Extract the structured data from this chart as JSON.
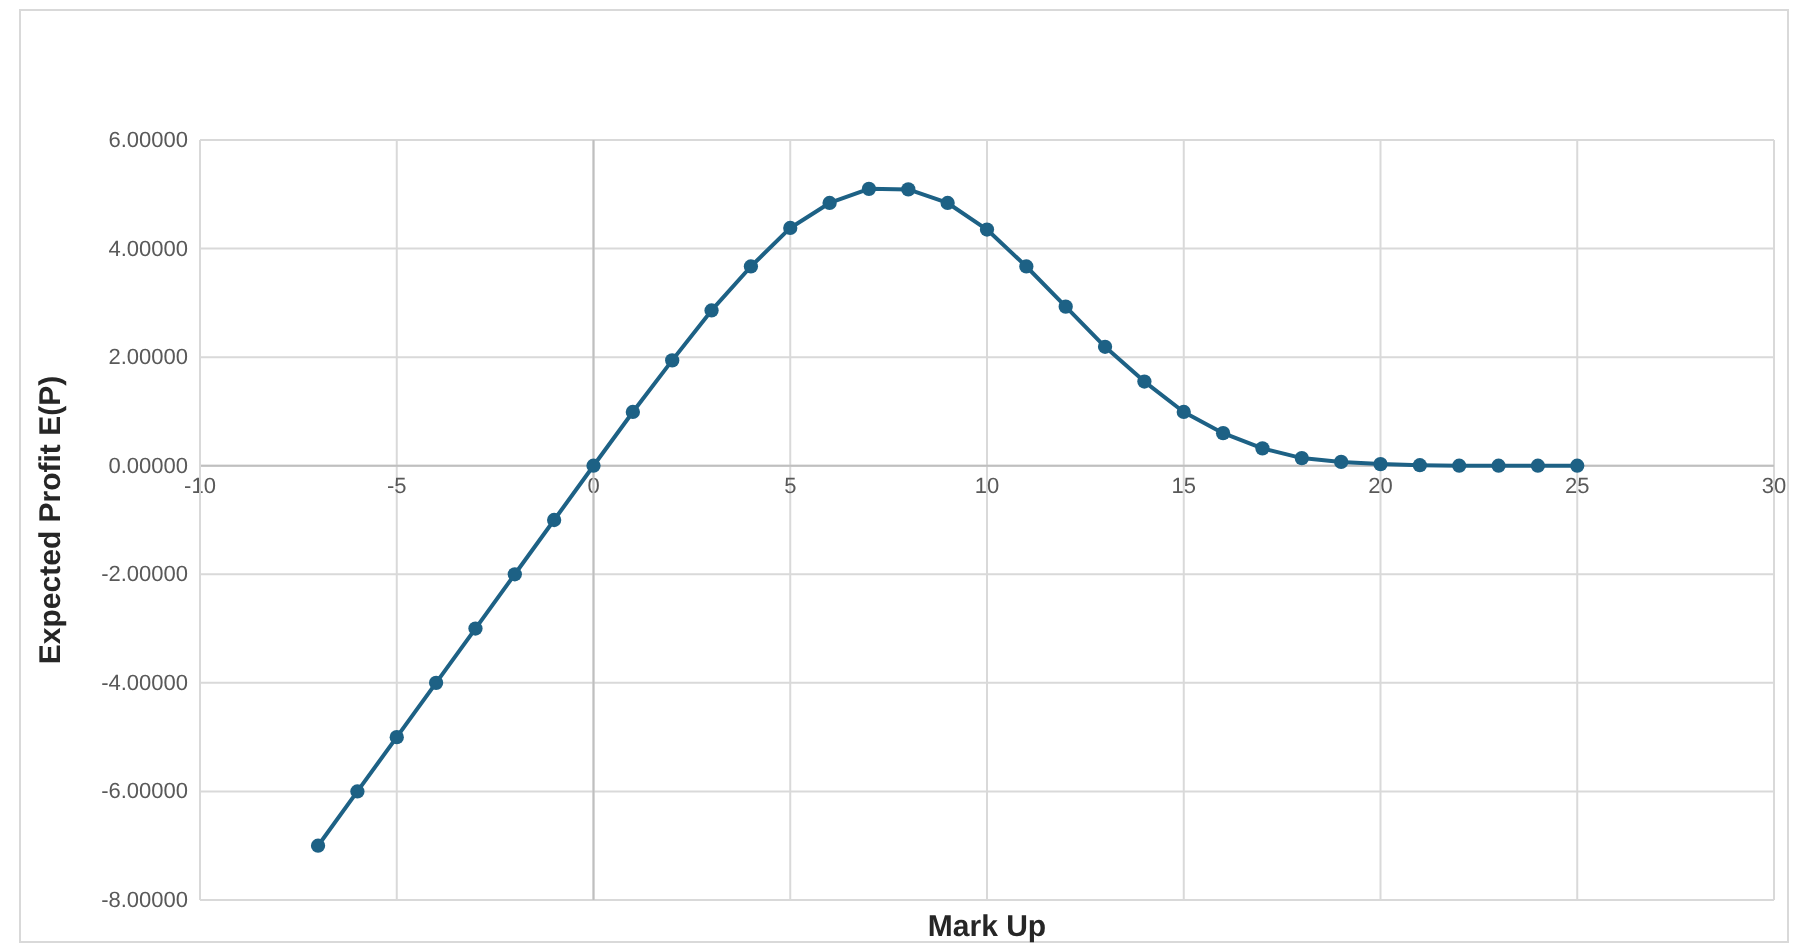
{
  "chart_data": {
    "type": "line",
    "xlabel": "Mark Up",
    "ylabel": "Expected Profit E(P)",
    "x": [
      -7,
      -6,
      -5,
      -4,
      -3,
      -2,
      -1,
      0,
      1,
      2,
      3,
      4,
      5,
      6,
      7,
      8,
      9,
      10,
      11,
      12,
      13,
      14,
      15,
      16,
      17,
      18,
      19,
      20,
      21,
      22,
      23,
      24,
      25
    ],
    "series": [
      {
        "color": "#1d6185",
        "values": [
          -7,
          -6,
          -5,
          -4,
          -3,
          -2,
          -1,
          0,
          0.99,
          1.94,
          2.86,
          3.67,
          4.38,
          4.84,
          5.1,
          5.09,
          4.84,
          4.35,
          3.67,
          2.93,
          2.19,
          1.55,
          0.99,
          0.6,
          0.32,
          0.14,
          0.07,
          0.03,
          0.01,
          0,
          0,
          0,
          0
        ]
      }
    ],
    "xlim": [
      -10,
      30
    ],
    "xticks": [
      -10,
      -5,
      0,
      5,
      10,
      15,
      20,
      25,
      30
    ],
    "ylim": [
      -8,
      6
    ],
    "yticks": [
      {
        "value": -8,
        "label": "-8.00000"
      },
      {
        "value": -6,
        "label": "-6.00000"
      },
      {
        "value": -4,
        "label": "-4.00000"
      },
      {
        "value": -2,
        "label": "-2.00000"
      },
      {
        "value": 0,
        "label": "0.00000"
      },
      {
        "value": 2,
        "label": "2.00000"
      },
      {
        "value": 4,
        "label": "4.00000"
      },
      {
        "value": 6,
        "label": "6.00000"
      }
    ],
    "grid": true,
    "marker": "circle",
    "line_style": "solid"
  }
}
